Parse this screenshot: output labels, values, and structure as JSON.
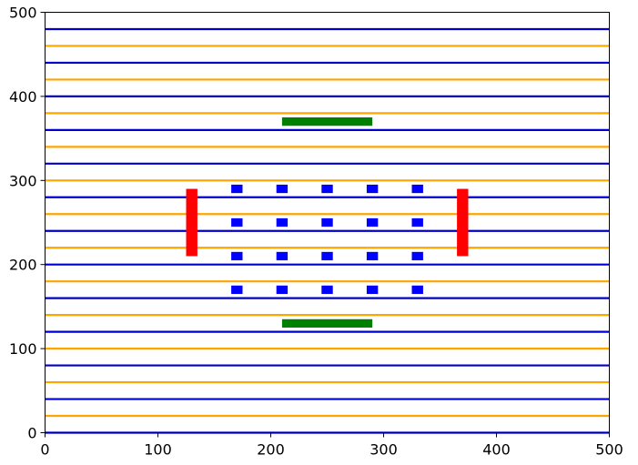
{
  "chart_data": {
    "type": "scatter",
    "title": "",
    "xlabel": "",
    "ylabel": "",
    "xlim": [
      0,
      500
    ],
    "ylim": [
      0,
      500
    ],
    "xticks": [
      0,
      100,
      200,
      300,
      400,
      500
    ],
    "yticks": [
      0,
      100,
      200,
      300,
      400,
      500
    ],
    "grid": false,
    "hlines": [
      {
        "y": 0,
        "color": "#0000cc"
      },
      {
        "y": 20,
        "color": "#ffa500"
      },
      {
        "y": 40,
        "color": "#0000cc"
      },
      {
        "y": 60,
        "color": "#ffa500"
      },
      {
        "y": 80,
        "color": "#0000cc"
      },
      {
        "y": 100,
        "color": "#ffa500"
      },
      {
        "y": 120,
        "color": "#0000cc"
      },
      {
        "y": 140,
        "color": "#ffa500"
      },
      {
        "y": 160,
        "color": "#0000cc"
      },
      {
        "y": 180,
        "color": "#ffa500"
      },
      {
        "y": 200,
        "color": "#0000cc"
      },
      {
        "y": 220,
        "color": "#ffa500"
      },
      {
        "y": 240,
        "color": "#0000cc"
      },
      {
        "y": 260,
        "color": "#ffa500"
      },
      {
        "y": 280,
        "color": "#0000cc"
      },
      {
        "y": 300,
        "color": "#ffa500"
      },
      {
        "y": 320,
        "color": "#0000cc"
      },
      {
        "y": 340,
        "color": "#ffa500"
      },
      {
        "y": 360,
        "color": "#0000cc"
      },
      {
        "y": 380,
        "color": "#ffa500"
      },
      {
        "y": 400,
        "color": "#0000cc"
      },
      {
        "y": 420,
        "color": "#ffa500"
      },
      {
        "y": 440,
        "color": "#0000cc"
      },
      {
        "y": 460,
        "color": "#ffa500"
      },
      {
        "y": 480,
        "color": "#0000cc"
      }
    ],
    "blue_squares": {
      "color": "#0000ff",
      "size": 10,
      "points": [
        [
          170,
          170
        ],
        [
          210,
          170
        ],
        [
          250,
          170
        ],
        [
          290,
          170
        ],
        [
          330,
          170
        ],
        [
          170,
          210
        ],
        [
          210,
          210
        ],
        [
          250,
          210
        ],
        [
          290,
          210
        ],
        [
          330,
          210
        ],
        [
          170,
          250
        ],
        [
          210,
          250
        ],
        [
          250,
          250
        ],
        [
          290,
          250
        ],
        [
          330,
          250
        ],
        [
          170,
          290
        ],
        [
          210,
          290
        ],
        [
          250,
          290
        ],
        [
          290,
          290
        ],
        [
          330,
          290
        ]
      ]
    },
    "red_bars": {
      "color": "#ff0000",
      "items": [
        {
          "x0": 125,
          "x1": 135,
          "y0": 210,
          "y1": 290
        },
        {
          "x0": 365,
          "x1": 375,
          "y0": 210,
          "y1": 290
        }
      ]
    },
    "green_bars": {
      "color": "#008000",
      "items": [
        {
          "x0": 210,
          "x1": 290,
          "y0": 125,
          "y1": 135
        },
        {
          "x0": 210,
          "x1": 290,
          "y0": 365,
          "y1": 375
        }
      ]
    }
  }
}
